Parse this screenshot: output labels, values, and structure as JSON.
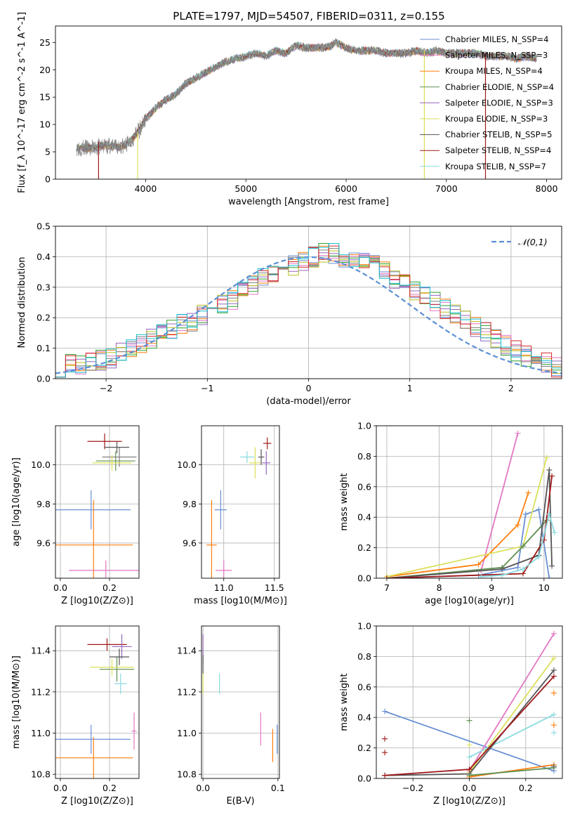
{
  "figure_title": "PLATE=1797, MJD=54507, FIBERID=0311, z=0.155",
  "colors": {
    "spectrum": "#808080",
    "grid": "#b0b0b0",
    "models": [
      "#6a8fd6",
      "#ff7f0e",
      "#e377c2",
      "#2ca02c",
      "#9467bd",
      "#bcbd22",
      "#7f7f7f",
      "#d62728",
      "#17becf"
    ]
  },
  "chart_data": [
    {
      "id": "spectrum",
      "type": "line",
      "title": "PLATE=1797, MJD=54507, FIBERID=0311, z=0.155",
      "xlabel": "wavelength [Angstrom, rest frame]",
      "ylabel": "Flux [f_λ 10^-17 erg cm^-2 s^-1 A^-1]",
      "xlim": [
        3100,
        8150
      ],
      "ylim": [
        0,
        28
      ],
      "xticks": [
        4000,
        5000,
        6000,
        7000,
        8000
      ],
      "yticks": [
        0,
        5,
        10,
        15,
        20,
        25
      ],
      "legend_location": "upper-right",
      "legend": [
        {
          "name": "Chabrier MILES, N_SSP=4",
          "color": "#6a8fd6"
        },
        {
          "name": "Salpeter MILES, N_SSP=3",
          "color": "#e377c2"
        },
        {
          "name": "Kroupa MILES, N_SSP=4",
          "color": "#ff7f0e"
        },
        {
          "name": "Chabrier ELODIE, N_SSP=4",
          "color": "#5f8f4f"
        },
        {
          "name": "Salpeter ELODIE, N_SSP=3",
          "color": "#9467bd"
        },
        {
          "name": "Kroupa ELODIE, N_SSP=3",
          "color": "#dbe05a"
        },
        {
          "name": "Chabrier STELIB, N_SSP=5",
          "color": "#555555"
        },
        {
          "name": "Salpeter STELIB, N_SSP=4",
          "color": "#a01818"
        },
        {
          "name": "Kroupa STELIB, N_SSP=7",
          "color": "#8adadf"
        }
      ],
      "continuum": {
        "x": [
          3310,
          3450,
          3600,
          3700,
          3800,
          3900,
          4000,
          4100,
          4200,
          4300,
          4400,
          4500,
          4600,
          4700,
          4800,
          4900,
          5000,
          5100,
          5200,
          5300,
          5400,
          5500,
          5600,
          5700,
          5800,
          5900,
          6000,
          6100,
          6200,
          6300,
          6400,
          6500,
          6600,
          6700,
          6800,
          6900,
          7000,
          7100,
          7200,
          7300,
          7400,
          7500,
          7600,
          7700,
          7800,
          7900
        ],
        "y": [
          5.8,
          5.6,
          6.2,
          5.8,
          6.2,
          8.0,
          11.0,
          13.0,
          14.5,
          15.5,
          17.5,
          18.5,
          19.5,
          20.5,
          21.5,
          22.0,
          22.5,
          23.0,
          22.5,
          23.5,
          23.0,
          24.5,
          24.0,
          24.0,
          24.0,
          25.0,
          24.0,
          23.5,
          23.5,
          23.5,
          23.0,
          23.0,
          23.0,
          23.5,
          23.0,
          23.5,
          23.0,
          23.0,
          23.0,
          23.0,
          22.5,
          22.5,
          22.5,
          22.0,
          22.5,
          22.0
        ]
      },
      "vertical_spikes": [
        {
          "x": 3530,
          "ymax": 6.8,
          "color": "#a01818"
        },
        {
          "x": 3920,
          "ymax": 8.5,
          "color": "#dbe05a"
        },
        {
          "x": 6780,
          "ymax": 23.5,
          "color": "#dbe05a"
        },
        {
          "x": 7390,
          "ymax": 23.0,
          "color": "#a01818"
        }
      ]
    },
    {
      "id": "residuals",
      "type": "histogram",
      "xlabel": "(data-model)/error",
      "ylabel": "Normed distribution",
      "xlim": [
        -2.5,
        2.5
      ],
      "ylim": [
        0,
        0.5
      ],
      "xticks": [
        -2,
        -1,
        0,
        1,
        2
      ],
      "yticks": [
        0.0,
        0.1,
        0.2,
        0.3,
        0.4,
        0.5
      ],
      "legend": [
        {
          "name": "𝒩(0,1)",
          "color": "#5b8fd6",
          "style": "dashed"
        }
      ],
      "legend_location": "upper-right",
      "bin_width": 0.1,
      "envelope": [
        0.04,
        0.045,
        0.05,
        0.055,
        0.06,
        0.07,
        0.085,
        0.1,
        0.11,
        0.13,
        0.15,
        0.16,
        0.18,
        0.19,
        0.21,
        0.23,
        0.25,
        0.26,
        0.29,
        0.31,
        0.33,
        0.35,
        0.36,
        0.37,
        0.39,
        0.4,
        0.41,
        0.41,
        0.4,
        0.39,
        0.38,
        0.37,
        0.35,
        0.33,
        0.31,
        0.29,
        0.27,
        0.25,
        0.23,
        0.21,
        0.19,
        0.17,
        0.15,
        0.13,
        0.11,
        0.09,
        0.075,
        0.06,
        0.05,
        0.04
      ]
    },
    {
      "id": "age-vs-Z",
      "type": "errorbar",
      "xlabel": "Z [log10(Z/Z⊙)]",
      "ylabel": "age  [log10(age/yr)]",
      "xlim": [
        -0.02,
        0.32
      ],
      "ylim": [
        9.42,
        10.2
      ],
      "xticks": [
        0.0,
        0.2
      ],
      "yticks": [
        9.6,
        9.8,
        10.0
      ],
      "points": [
        {
          "x": 0.125,
          "y": 9.77,
          "xerr": 0.16,
          "yerr": 0.1,
          "color": "#6a8fd6"
        },
        {
          "x": 0.135,
          "y": 9.59,
          "xerr": 0.16,
          "yerr": 0.23,
          "color": "#ff7f0e"
        },
        {
          "x": 0.185,
          "y": 9.46,
          "xerr": 0.15,
          "yerr": 0.05,
          "color": "#e377c2"
        },
        {
          "x": 0.225,
          "y": 10.02,
          "xerr": 0.08,
          "yerr": 0.05,
          "color": "#5f8f4f"
        },
        {
          "x": 0.24,
          "y": 10.04,
          "xerr": 0.07,
          "yerr": 0.05,
          "color": "#7f7f7f"
        },
        {
          "x": 0.21,
          "y": 10.01,
          "xerr": 0.08,
          "yerr": 0.04,
          "color": "#dbe05a"
        },
        {
          "x": 0.18,
          "y": 10.12,
          "xerr": 0.07,
          "yerr": 0.04,
          "color": "#a01818"
        },
        {
          "x": 0.23,
          "y": 10.09,
          "xerr": 0.05,
          "yerr": 0.03,
          "color": "#555555"
        }
      ]
    },
    {
      "id": "age-vs-mass",
      "type": "errorbar",
      "xlabel": "mass [log10(M/M⊙)]",
      "xlim": [
        10.78,
        11.55
      ],
      "ylim": [
        9.42,
        10.2
      ],
      "xticks": [
        11.0,
        11.5
      ],
      "yticks": [
        9.6,
        9.8,
        10.0
      ],
      "points": [
        {
          "x": 10.97,
          "y": 9.77,
          "xerr": 0.06,
          "yerr": 0.1,
          "color": "#6a8fd6"
        },
        {
          "x": 10.88,
          "y": 9.59,
          "xerr": 0.05,
          "yerr": 0.23,
          "color": "#ff7f0e"
        },
        {
          "x": 11.0,
          "y": 9.46,
          "xerr": 0.08,
          "yerr": 0.05,
          "color": "#e377c2"
        },
        {
          "x": 11.23,
          "y": 10.04,
          "xerr": 0.07,
          "yerr": 0.03,
          "color": "#8adadf"
        },
        {
          "x": 11.31,
          "y": 10.01,
          "xerr": 0.06,
          "yerr": 0.08,
          "color": "#dbe05a"
        },
        {
          "x": 11.43,
          "y": 10.11,
          "xerr": 0.04,
          "yerr": 0.03,
          "color": "#a01818"
        },
        {
          "x": 11.42,
          "y": 10.01,
          "xerr": 0.04,
          "yerr": 0.06,
          "color": "#9467bd"
        },
        {
          "x": 11.37,
          "y": 10.04,
          "xerr": 0.03,
          "yerr": 0.04,
          "color": "#555555"
        }
      ]
    },
    {
      "id": "mass-weight-vs-age",
      "type": "line",
      "xlabel": "age  [log10(age/yr)]",
      "ylabel": "mass weight",
      "xlim": [
        6.8,
        10.35
      ],
      "ylim": [
        0,
        1.0
      ],
      "xticks": [
        7,
        8,
        9,
        10
      ],
      "yticks": [
        0.0,
        0.2,
        0.4,
        0.6,
        0.8,
        1.0
      ],
      "series": [
        {
          "color": "#e377c2",
          "x": [
            8.8,
            9.5
          ],
          "y": [
            0.05,
            0.95
          ]
        },
        {
          "color": "#ff7f0e",
          "x": [
            7.0,
            8.75,
            9.5,
            9.7
          ],
          "y": [
            0.01,
            0.09,
            0.35,
            0.56
          ]
        },
        {
          "color": "#6a8fd6",
          "x": [
            7.0,
            8.75,
            9.5,
            9.65,
            9.9,
            10.1
          ],
          "y": [
            0.0,
            0.02,
            0.07,
            0.42,
            0.45,
            0.0
          ]
        },
        {
          "color": "#dbe05a",
          "x": [
            7.0,
            9.6,
            10.05
          ],
          "y": [
            0.01,
            0.21,
            0.79
          ]
        },
        {
          "color": "#5f8f4f",
          "x": [
            7.0,
            9.2,
            9.6,
            10.05
          ],
          "y": [
            0.0,
            0.07,
            0.21,
            0.38
          ]
        },
        {
          "color": "#555555",
          "x": [
            7.0,
            9.2,
            9.9,
            10.1,
            10.15
          ],
          "y": [
            0.0,
            0.06,
            0.15,
            0.71,
            0.08
          ]
        },
        {
          "color": "#a01818",
          "x": [
            7.0,
            9.6,
            10.0,
            10.15
          ],
          "y": [
            0.0,
            0.03,
            0.25,
            0.67
          ]
        },
        {
          "color": "#8adadf",
          "x": [
            8.8,
            9.2,
            9.6,
            9.9,
            10.1,
            10.2
          ],
          "y": [
            0.01,
            0.02,
            0.06,
            0.14,
            0.42,
            0.3
          ]
        }
      ]
    },
    {
      "id": "mass-vs-Z",
      "type": "errorbar",
      "xlabel": "Z [log10(Z/Z⊙)]",
      "ylabel": "mass [log10(M/M⊙)]",
      "xlim": [
        -0.02,
        0.32
      ],
      "ylim": [
        10.78,
        11.52
      ],
      "xticks": [
        0.0,
        0.2
      ],
      "yticks": [
        10.8,
        11.0,
        11.2,
        11.4
      ],
      "points": [
        {
          "x": 0.125,
          "y": 10.97,
          "xerr": 0.16,
          "yerr": 0.07,
          "color": "#6a8fd6"
        },
        {
          "x": 0.135,
          "y": 10.88,
          "xerr": 0.16,
          "yerr": 0.1,
          "color": "#ff7f0e"
        },
        {
          "x": 0.3,
          "y": 11.01,
          "xerr": 0.01,
          "yerr": 0.09,
          "color": "#e377c2"
        },
        {
          "x": 0.23,
          "y": 11.31,
          "xerr": 0.07,
          "yerr": 0.06,
          "color": "#5f8f4f"
        },
        {
          "x": 0.245,
          "y": 11.24,
          "xerr": 0.025,
          "yerr": 0.05,
          "color": "#8adadf"
        },
        {
          "x": 0.21,
          "y": 11.32,
          "xerr": 0.09,
          "yerr": 0.04,
          "color": "#dbe05a"
        },
        {
          "x": 0.19,
          "y": 11.43,
          "xerr": 0.08,
          "yerr": 0.03,
          "color": "#a01818"
        },
        {
          "x": 0.25,
          "y": 11.42,
          "xerr": 0.04,
          "yerr": 0.06,
          "color": "#9467bd"
        },
        {
          "x": 0.24,
          "y": 11.37,
          "xerr": 0.04,
          "yerr": 0.04,
          "color": "#555555"
        }
      ]
    },
    {
      "id": "mass-vs-EBV",
      "type": "errorbar",
      "xlabel": "E(B-V)",
      "xlim": [
        -0.002,
        0.102
      ],
      "ylim": [
        10.78,
        11.52
      ],
      "xticks": [
        0.0,
        0.1
      ],
      "yticks": [
        10.8,
        11.0,
        11.2,
        11.4
      ],
      "points": [
        {
          "x": 0.0,
          "y": 11.41,
          "xerr": 0,
          "yerr": 0.07,
          "color": "#9467bd"
        },
        {
          "x": 0.0,
          "y": 11.33,
          "xerr": 0,
          "yerr": 0.05,
          "color": "#555555"
        },
        {
          "x": 0.0,
          "y": 11.24,
          "xerr": 0,
          "yerr": 0.05,
          "color": "#dbe05a"
        },
        {
          "x": 0.022,
          "y": 11.24,
          "xerr": 0,
          "yerr": 0.05,
          "color": "#8adadf"
        },
        {
          "x": 0.077,
          "y": 11.02,
          "xerr": 0,
          "yerr": 0.08,
          "color": "#e377c2"
        },
        {
          "x": 0.093,
          "y": 10.94,
          "xerr": 0,
          "yerr": 0.08,
          "color": "#ff7f0e"
        },
        {
          "x": 0.099,
          "y": 10.97,
          "xerr": 0,
          "yerr": 0.07,
          "color": "#6a8fd6"
        }
      ]
    },
    {
      "id": "mass-weight-vs-Z",
      "type": "line",
      "xlabel": "Z [log10(Z/Z⊙)]",
      "ylabel": "mass weight",
      "xlim": [
        -0.33,
        0.33
      ],
      "ylim": [
        0,
        1.0
      ],
      "xticks": [
        -0.2,
        0.0,
        0.2
      ],
      "yticks": [
        0.0,
        0.2,
        0.4,
        0.6,
        0.8,
        1.0
      ],
      "series": [
        {
          "color": "#6a8fd6",
          "x": [
            -0.3,
            0.3
          ],
          "y": [
            0.44,
            0.05
          ]
        },
        {
          "color": "#e377c2",
          "x": [
            0.0,
            0.3
          ],
          "y": [
            0.05,
            0.95
          ]
        },
        {
          "color": "#dbe05a",
          "x": [
            0.0,
            0.3
          ],
          "y": [
            0.04,
            0.79
          ]
        },
        {
          "color": "#8adadf",
          "x": [
            0.0,
            0.3
          ],
          "y": [
            0.14,
            0.42
          ]
        },
        {
          "color": "#555555",
          "x": [
            -0.3,
            0.0,
            0.3
          ],
          "y": [
            0.02,
            0.03,
            0.71
          ]
        },
        {
          "color": "#a01818",
          "x": [
            -0.3,
            0.0,
            0.3
          ],
          "y": [
            0.02,
            0.06,
            0.67
          ]
        },
        {
          "color": "#ff7f0e",
          "x": [
            0.0,
            0.3
          ],
          "y": [
            0.01,
            0.09
          ]
        },
        {
          "color": "#5f8f4f",
          "x": [
            0.0,
            0.3
          ],
          "y": [
            0.02,
            0.07
          ]
        }
      ],
      "markers": [
        {
          "x": -0.3,
          "y": 0.26,
          "color": "#a01818"
        },
        {
          "x": -0.3,
          "y": 0.17,
          "color": "#a01818"
        },
        {
          "x": 0.0,
          "y": 0.38,
          "color": "#5f8f4f"
        },
        {
          "x": 0.0,
          "y": 0.22,
          "color": "#dbe05a"
        },
        {
          "x": 0.3,
          "y": 0.56,
          "color": "#ff7f0e"
        },
        {
          "x": 0.3,
          "y": 0.35,
          "color": "#ff7f0e"
        },
        {
          "x": 0.3,
          "y": 0.3,
          "color": "#8adadf"
        },
        {
          "x": 0.3,
          "y": 0.08,
          "color": "#555555"
        }
      ]
    }
  ]
}
